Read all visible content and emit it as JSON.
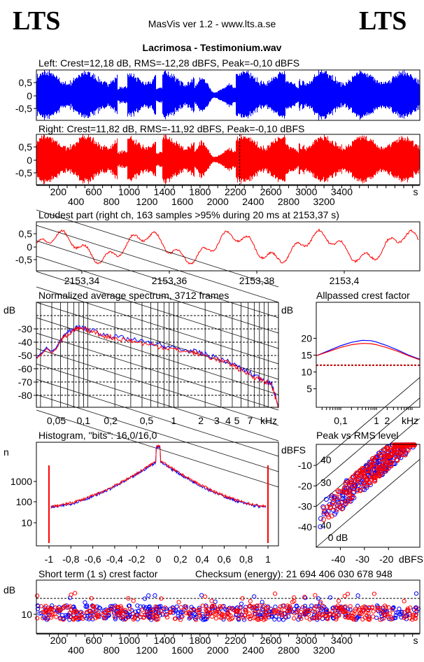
{
  "header": {
    "logo_left": "LTS",
    "logo_right": "LTS",
    "app": "MasVis ver 1.2 - www.lts.a.se",
    "file": "Lacrimosa - Testimonium.wav"
  },
  "colors": {
    "left": "#0000ff",
    "right": "#ff0000"
  },
  "chart_data": [
    {
      "type": "area",
      "id": "left",
      "title": "Left: Crest=12,18 dB, RMS=-12,28 dBFS, Peak=-0,10 dBFS",
      "yticks": [
        "0,5",
        "0",
        "-0,5"
      ],
      "ylim": [
        -1,
        1
      ]
    },
    {
      "type": "area",
      "id": "right",
      "title": "Right: Crest=11,82 dB, RMS=-11,92 dBFS, Peak=-0,10 dBFS",
      "yticks": [
        "0,5",
        "0",
        "-0,5"
      ],
      "ylim": [
        -1,
        1
      ],
      "marker_s": 2153.37,
      "xticks": [
        "200",
        "400",
        "600",
        "800",
        "1000",
        "1200",
        "1400",
        "1600",
        "1800",
        "2000",
        "2200",
        "2400",
        "2600",
        "2800",
        "3000",
        "3200",
        "3400"
      ],
      "xunit": "s"
    },
    {
      "type": "line",
      "id": "loudest",
      "title": "Loudest part (right ch, 163 samples >95% during 20 ms at 2153,37 s)",
      "yticks": [
        "0,5",
        "0",
        "-0,5"
      ],
      "xticks": [
        "2153,34",
        "2153,36",
        "2153,38",
        "2153,4"
      ],
      "xlim": [
        2153.327,
        2153.417
      ]
    },
    {
      "type": "line",
      "id": "spectrum",
      "title": "Normalized average spectrum, 3712 frames",
      "ylabel": "dB",
      "yticks": [
        "-30",
        "-40",
        "-50",
        "-60",
        "-70",
        "-80"
      ],
      "xticks": [
        "0,05",
        "0,1",
        "0,2",
        "0,5",
        "1",
        "2",
        "3",
        "4",
        "5",
        "7"
      ],
      "xunit": "kHz",
      "xscale": "log",
      "xlim": [
        0.027,
        13
      ],
      "ylim": [
        -89,
        -10
      ],
      "grid": true,
      "x": [
        0.027,
        0.03,
        0.035,
        0.04,
        0.045,
        0.05,
        0.06,
        0.07,
        0.08,
        0.1,
        0.15,
        0.2,
        0.3,
        0.5,
        0.7,
        1,
        1.5,
        2,
        3,
        4,
        5,
        7,
        9,
        11,
        13
      ],
      "series": [
        {
          "values": [
            -52,
            -49,
            -44,
            -47,
            -44,
            -38,
            -33,
            -30,
            -29,
            -30,
            -34,
            -36,
            -38,
            -41,
            -43,
            -45,
            -47,
            -49,
            -53,
            -56,
            -60,
            -65,
            -68,
            -72,
            -88
          ]
        },
        {
          "values": [
            -52,
            -50,
            -45,
            -48,
            -45,
            -39,
            -34,
            -31,
            -30,
            -31,
            -35,
            -37,
            -39,
            -42,
            -44,
            -46,
            -48,
            -50,
            -54,
            -57,
            -61,
            -66,
            -69,
            -73,
            -89
          ]
        }
      ]
    },
    {
      "type": "line",
      "id": "crest",
      "title": "Allpassed crest factor",
      "ylabel": "dB",
      "yticks": [
        "20",
        "15",
        "10",
        "5"
      ],
      "xticks": [
        "0,1",
        "1",
        "2"
      ],
      "xunit": "kHz",
      "xscale": "log",
      "xlim": [
        0.0206,
        16.4
      ],
      "ylim": [
        -0.5,
        30.7
      ],
      "x": [
        0.0206,
        0.05,
        0.1,
        0.2,
        0.4,
        0.7,
        1,
        2,
        4,
        8,
        16.4
      ],
      "series": [
        {
          "values": [
            14.8,
            16.5,
            17.8,
            18.8,
            19.4,
            19.3,
            18.9,
            17.8,
            16.5,
            15,
            13.8
          ]
        },
        {
          "values": [
            14.8,
            16.2,
            17.3,
            18.1,
            18.5,
            18.4,
            18.1,
            17.2,
            16.1,
            14.8,
            13.6
          ]
        }
      ],
      "reference_line": 12
    },
    {
      "type": "line",
      "id": "histogram",
      "title": "Histogram, \"bits\": 16,0/16,0",
      "ylabel": "n",
      "yscale": "log",
      "yticks": [
        "1000",
        "100",
        "10"
      ],
      "xticks": [
        "-1",
        "-0,8",
        "-0,6",
        "-0,4",
        "-0,2",
        "0",
        "0,2",
        "0,4",
        "0,6",
        "0,8",
        "1"
      ],
      "xlim": [
        -1.12,
        1.09
      ],
      "ylim": [
        0.73,
        85000
      ]
    },
    {
      "type": "scatter",
      "id": "peakrms",
      "title": "Peak vs RMS level",
      "ylabel": "dBFS",
      "xlabel": "dBFS",
      "yticks": [
        "-10",
        "-20",
        "-30",
        "-40"
      ],
      "xticks": [
        "-40",
        "-30",
        "-20"
      ],
      "xlim": [
        -50,
        -7
      ],
      "ylim": [
        -50,
        0.3
      ],
      "diagonals": [
        "40",
        "30",
        "20",
        "0 dB"
      ]
    },
    {
      "type": "scatter",
      "id": "shortcrest",
      "title": "Short term (1 s) crest factor",
      "ylabel": "dB",
      "yticks": [
        "10"
      ],
      "reference_line": 20,
      "ylim": [
        -2,
        31.5
      ],
      "xticks": [
        "200",
        "400",
        "600",
        "800",
        "1000",
        "1200",
        "1400",
        "1600",
        "1800",
        "2000",
        "2200",
        "2400",
        "2600",
        "2800",
        "3000",
        "3200",
        "3400"
      ],
      "xunit": "s"
    }
  ],
  "checksum": "Checksum (energy):  21 694 406 030 678 948"
}
